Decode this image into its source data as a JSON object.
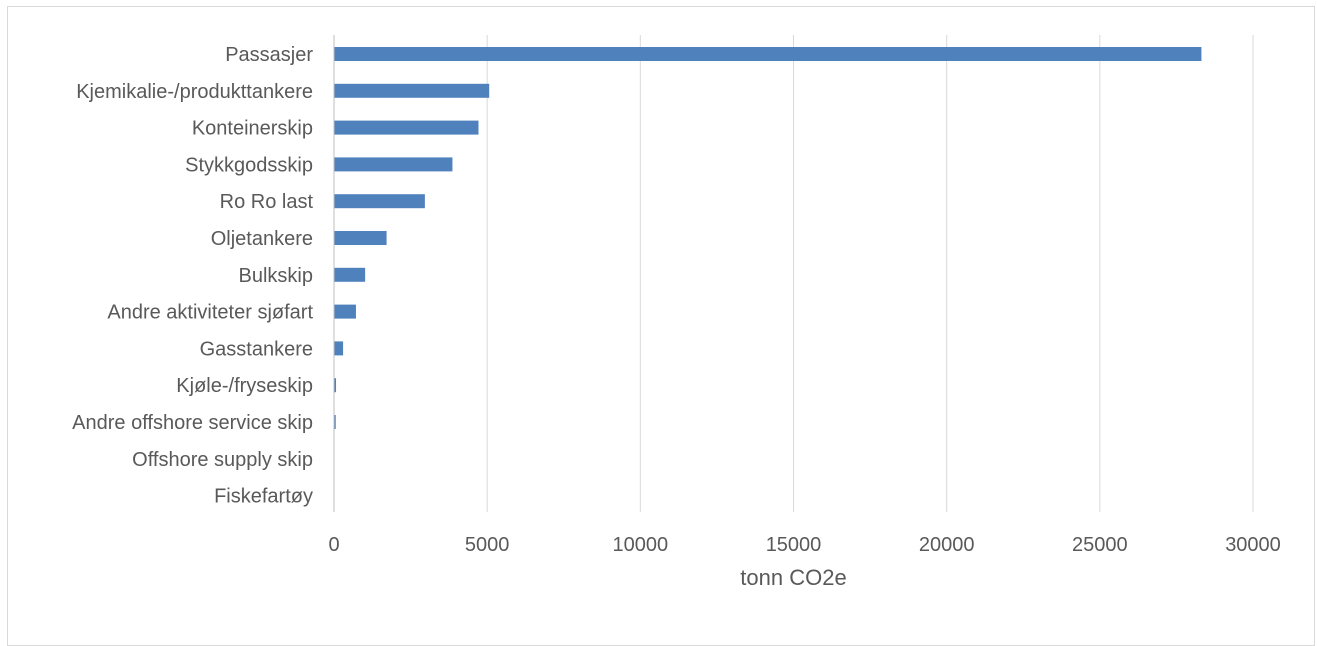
{
  "chart_data": {
    "type": "bar",
    "orientation": "horizontal",
    "categories": [
      "Passasjer",
      "Kjemikalie-/produkttankere",
      "Konteinerskip",
      "Stykkgodsskip",
      "Ro Ro last",
      "Oljetankere",
      "Bulkskip",
      "Andre aktiviteter sjøfart",
      "Gasstankere",
      "Kjøle-/fryseskip",
      "Andre offshore service skip",
      "Offshore supply skip",
      "Fiskefartøy"
    ],
    "values": [
      28300,
      5050,
      4700,
      3850,
      2950,
      1700,
      1000,
      700,
      280,
      50,
      40,
      0,
      0
    ],
    "xlabel": "tonn CO2e",
    "ylabel": "",
    "xlim": [
      0,
      30000
    ],
    "xticks": [
      0,
      5000,
      10000,
      15000,
      20000,
      25000,
      30000
    ],
    "grid": "vertical",
    "bar_color": "#4f81bd",
    "grid_color": "#d9d9d9"
  }
}
